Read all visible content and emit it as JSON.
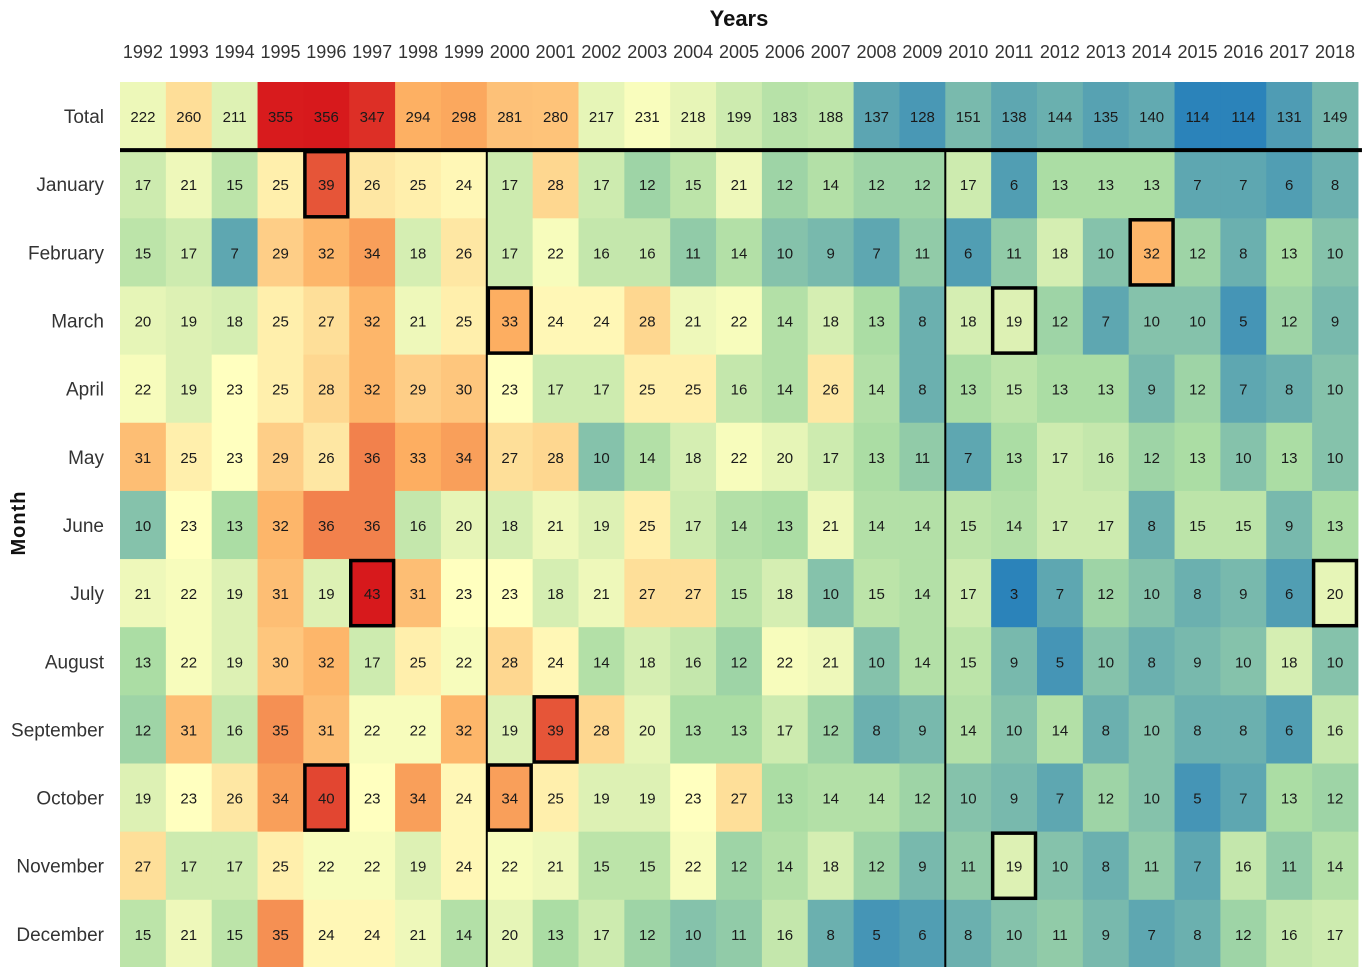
{
  "chart_data": {
    "type": "heatmap",
    "title": "Years",
    "xlabel": "Years",
    "ylabel": "Month",
    "x": [
      "1992",
      "1993",
      "1994",
      "1995",
      "1996",
      "1997",
      "1998",
      "1999",
      "2000",
      "2001",
      "2002",
      "2003",
      "2004",
      "2005",
      "2006",
      "2007",
      "2008",
      "2009",
      "2010",
      "2011",
      "2012",
      "2013",
      "2014",
      "2015",
      "2016",
      "2017",
      "2018"
    ],
    "rows": [
      {
        "label": "Total",
        "values": [
          222,
          260,
          211,
          355,
          356,
          347,
          294,
          298,
          281,
          280,
          217,
          231,
          218,
          199,
          183,
          188,
          137,
          128,
          151,
          138,
          144,
          135,
          140,
          114,
          114,
          131,
          149
        ]
      },
      {
        "label": "January",
        "values": [
          17,
          21,
          15,
          25,
          39,
          26,
          25,
          24,
          17,
          28,
          17,
          12,
          15,
          21,
          12,
          14,
          12,
          12,
          17,
          6,
          13,
          13,
          13,
          7,
          7,
          6,
          8
        ]
      },
      {
        "label": "February",
        "values": [
          15,
          17,
          7,
          29,
          32,
          34,
          18,
          26,
          17,
          22,
          16,
          16,
          11,
          14,
          10,
          9,
          7,
          11,
          6,
          11,
          18,
          10,
          32,
          12,
          8,
          13,
          10
        ]
      },
      {
        "label": "March",
        "values": [
          20,
          19,
          18,
          25,
          27,
          32,
          21,
          25,
          33,
          24,
          24,
          28,
          21,
          22,
          14,
          18,
          13,
          8,
          18,
          19,
          12,
          7,
          10,
          10,
          5,
          12,
          9
        ]
      },
      {
        "label": "April",
        "values": [
          22,
          19,
          23,
          25,
          28,
          32,
          29,
          30,
          23,
          17,
          17,
          25,
          25,
          16,
          14,
          26,
          14,
          8,
          13,
          15,
          13,
          13,
          9,
          12,
          7,
          8,
          10
        ]
      },
      {
        "label": "May",
        "values": [
          31,
          25,
          23,
          29,
          26,
          36,
          33,
          34,
          27,
          28,
          10,
          14,
          18,
          22,
          20,
          17,
          13,
          11,
          7,
          13,
          17,
          16,
          12,
          13,
          10,
          13,
          10
        ]
      },
      {
        "label": "June",
        "values": [
          10,
          23,
          13,
          32,
          36,
          36,
          16,
          20,
          18,
          21,
          19,
          25,
          17,
          14,
          13,
          21,
          14,
          14,
          15,
          14,
          17,
          17,
          8,
          15,
          15,
          9,
          13
        ]
      },
      {
        "label": "July",
        "values": [
          21,
          22,
          19,
          31,
          19,
          43,
          31,
          23,
          23,
          18,
          21,
          27,
          27,
          15,
          18,
          10,
          15,
          14,
          17,
          3,
          7,
          12,
          10,
          8,
          9,
          6,
          20
        ]
      },
      {
        "label": "August",
        "values": [
          13,
          22,
          19,
          30,
          32,
          17,
          25,
          22,
          28,
          24,
          14,
          18,
          16,
          12,
          22,
          21,
          10,
          14,
          15,
          9,
          5,
          10,
          8,
          9,
          10,
          18,
          10
        ]
      },
      {
        "label": "September",
        "values": [
          12,
          31,
          16,
          35,
          31,
          22,
          22,
          32,
          19,
          39,
          28,
          20,
          13,
          13,
          17,
          12,
          8,
          9,
          14,
          10,
          14,
          8,
          10,
          8,
          8,
          6,
          16
        ]
      },
      {
        "label": "October",
        "values": [
          19,
          23,
          26,
          34,
          40,
          23,
          34,
          24,
          34,
          25,
          19,
          19,
          23,
          27,
          13,
          14,
          14,
          12,
          10,
          9,
          7,
          12,
          10,
          5,
          7,
          13,
          12
        ]
      },
      {
        "label": "November",
        "values": [
          27,
          17,
          17,
          25,
          22,
          22,
          19,
          24,
          22,
          21,
          15,
          15,
          22,
          12,
          14,
          18,
          12,
          9,
          11,
          19,
          10,
          8,
          11,
          7,
          16,
          11,
          14
        ]
      },
      {
        "label": "December",
        "values": [
          15,
          21,
          15,
          35,
          24,
          24,
          21,
          14,
          20,
          13,
          17,
          12,
          10,
          11,
          16,
          8,
          5,
          6,
          8,
          10,
          11,
          9,
          7,
          8,
          12,
          16,
          17
        ]
      }
    ],
    "highlighted": [
      {
        "row": "January",
        "x": "1996"
      },
      {
        "row": "February",
        "x": "2014"
      },
      {
        "row": "March",
        "x": "2000"
      },
      {
        "row": "March",
        "x": "2011"
      },
      {
        "row": "July",
        "x": "1997"
      },
      {
        "row": "July",
        "x": "2018"
      },
      {
        "row": "September",
        "x": "2001"
      },
      {
        "row": "October",
        "x": "1996"
      },
      {
        "row": "October",
        "x": "2000"
      },
      {
        "row": "November",
        "x": "2011"
      }
    ],
    "separators_after_x": [
      "1999",
      "2009"
    ],
    "colormap": "Spectral (blue = low, red = high)",
    "colors": {
      "low": "#2b83ba",
      "midlow": "#abdda4",
      "mid": "#ffffbf",
      "midhigh": "#fdae61",
      "high": "#d7191c"
    }
  }
}
